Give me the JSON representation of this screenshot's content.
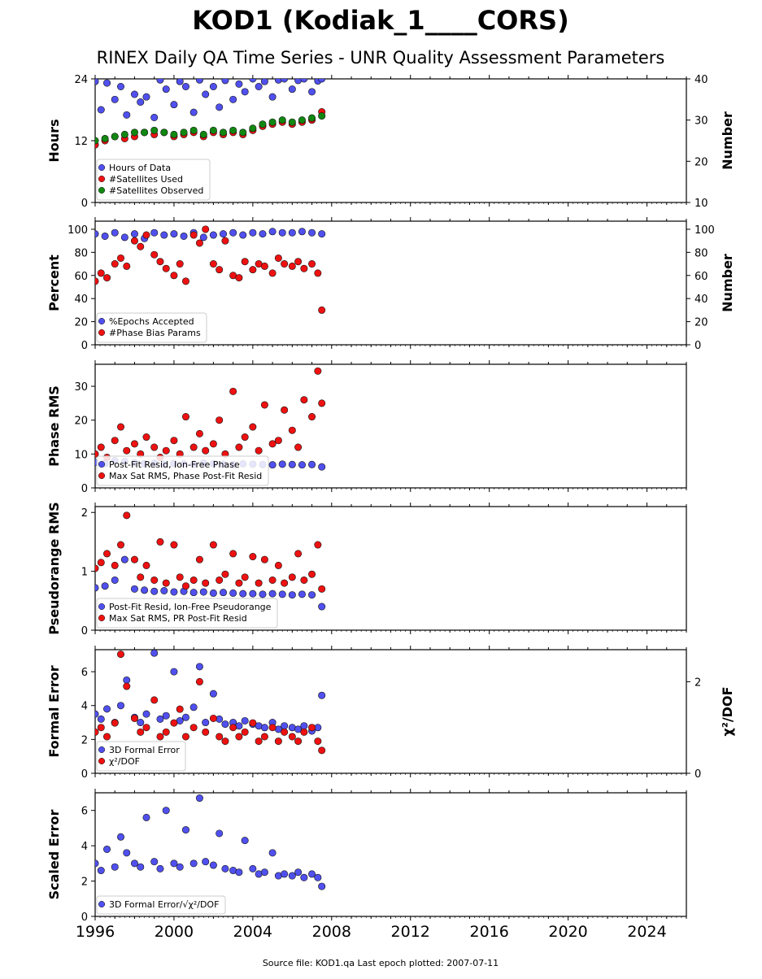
{
  "title": "KOD1 (Kodiak_1____CORS)",
  "subtitle": "RINEX Daily QA Time Series - UNR Quality Assessment Parameters",
  "footer": "Source file: KOD1.qa Last epoch plotted: 2007-07-11",
  "colors": {
    "blue": "#5050ee",
    "red": "#ee1111",
    "green": "#118811",
    "edge": "#111111"
  },
  "chart_data": [
    {
      "type": "scatter",
      "ylabel": "Hours",
      "ylabel_right": "Number",
      "xlim": [
        1996,
        2026
      ],
      "ylim": [
        0,
        24
      ],
      "ylim_right": [
        10,
        40
      ],
      "yticks": [
        0,
        12,
        24
      ],
      "yticks_right": [
        10,
        20,
        30,
        40
      ],
      "legend_loc": "lower-left",
      "series": [
        {
          "name": "Hours of Data",
          "color": "blue",
          "axis": "left",
          "x": [
            1996.0,
            1996.3,
            1996.6,
            1997.0,
            1997.3,
            1997.6,
            1998.0,
            1998.3,
            1998.6,
            1999.0,
            1999.3,
            1999.6,
            2000.0,
            2000.3,
            2000.6,
            2001.0,
            2001.3,
            2001.6,
            2002.0,
            2002.3,
            2002.6,
            2003.0,
            2003.3,
            2003.6,
            2004.0,
            2004.3,
            2004.6,
            2005.0,
            2005.3,
            2005.6,
            2006.0,
            2006.3,
            2006.6,
            2007.0,
            2007.3,
            2007.5
          ],
          "y": [
            23.5,
            18,
            23.2,
            20,
            22.5,
            17,
            21,
            19.5,
            20.5,
            16.5,
            23.8,
            22,
            19,
            23.5,
            22.5,
            17.5,
            23.8,
            21,
            22.5,
            18.5,
            23.7,
            20,
            23,
            21.5,
            24,
            22.5,
            23.5,
            20.5,
            23.8,
            24,
            22,
            23.7,
            24,
            21.5,
            23.6,
            24
          ]
        },
        {
          "name": "#Satellites Used",
          "color": "red",
          "axis": "right",
          "x": [
            1996.0,
            1996.5,
            1997.0,
            1997.5,
            1998.0,
            1998.5,
            1999.0,
            1999.5,
            2000.0,
            2000.5,
            2001.0,
            2001.5,
            2002.0,
            2002.5,
            2003.0,
            2003.5,
            2004.0,
            2004.5,
            2005.0,
            2005.5,
            2006.0,
            2006.5,
            2007.0,
            2007.5
          ],
          "y": [
            24,
            25,
            26,
            25.5,
            26,
            27,
            26.5,
            27,
            26,
            26.5,
            27,
            26,
            27,
            26.5,
            27,
            26.5,
            27.5,
            28.5,
            29,
            29.5,
            29,
            29.5,
            30,
            32
          ]
        },
        {
          "name": "#Satellites Observed",
          "color": "green",
          "axis": "right",
          "x": [
            1996.0,
            1996.5,
            1997.0,
            1997.5,
            1998.0,
            1998.5,
            1999.0,
            1999.5,
            2000.0,
            2000.5,
            2001.0,
            2001.5,
            2002.0,
            2002.5,
            2003.0,
            2003.5,
            2004.0,
            2004.5,
            2005.0,
            2005.5,
            2006.0,
            2006.5,
            2007.0,
            2007.5
          ],
          "y": [
            25,
            25.5,
            26,
            26.5,
            27,
            27,
            27.5,
            27,
            26.5,
            27,
            27.5,
            26.5,
            27.5,
            27,
            27.5,
            27,
            28,
            29,
            29.5,
            30,
            29.5,
            30,
            30.5,
            31
          ]
        }
      ]
    },
    {
      "type": "scatter",
      "ylabel": "Percent",
      "ylabel_right": "Number",
      "xlim": [
        1996,
        2026
      ],
      "ylim": [
        0,
        107
      ],
      "ylim_right": [
        0,
        107
      ],
      "yticks": [
        0,
        20,
        40,
        60,
        80,
        100
      ],
      "yticks_right": [
        0,
        20,
        40,
        60,
        80,
        100
      ],
      "legend_loc": "lower-left",
      "series": [
        {
          "name": "%Epochs Accepted",
          "color": "blue",
          "axis": "left",
          "x": [
            1996.0,
            1996.5,
            1997.0,
            1997.5,
            1998.0,
            1998.5,
            1999.0,
            1999.5,
            2000.0,
            2000.5,
            2001.0,
            2001.5,
            2002.0,
            2002.5,
            2003.0,
            2003.5,
            2004.0,
            2004.5,
            2005.0,
            2005.5,
            2006.0,
            2006.5,
            2007.0,
            2007.5
          ],
          "y": [
            96,
            94,
            97,
            93,
            96,
            92,
            97,
            95,
            96,
            94,
            97,
            93,
            95,
            96,
            97,
            95,
            97,
            96,
            98,
            97,
            97,
            98,
            97,
            96
          ]
        },
        {
          "name": "#Phase Bias Params",
          "color": "red",
          "axis": "right",
          "x": [
            1996.0,
            1996.3,
            1996.6,
            1997.0,
            1997.3,
            1997.6,
            1998.0,
            1998.3,
            1998.6,
            1999.0,
            1999.3,
            1999.6,
            2000.0,
            2000.3,
            2000.6,
            2001.0,
            2001.3,
            2001.6,
            2002.0,
            2002.3,
            2002.6,
            2003.0,
            2003.3,
            2003.6,
            2004.0,
            2004.3,
            2004.6,
            2005.0,
            2005.3,
            2005.6,
            2006.0,
            2006.3,
            2006.6,
            2007.0,
            2007.3,
            2007.5
          ],
          "y": [
            55,
            62,
            58,
            70,
            75,
            68,
            90,
            85,
            95,
            78,
            72,
            66,
            60,
            70,
            55,
            95,
            88,
            100,
            70,
            65,
            90,
            60,
            58,
            72,
            65,
            70,
            68,
            62,
            75,
            70,
            68,
            72,
            66,
            70,
            62,
            30
          ]
        }
      ]
    },
    {
      "type": "scatter",
      "ylabel": "Phase RMS",
      "xlim": [
        1996,
        2026
      ],
      "ylim": [
        0,
        36.5
      ],
      "yticks": [
        0,
        10,
        20,
        30
      ],
      "legend_loc": "lower-left",
      "series": [
        {
          "name": "Post-Fit Resid, Ion-Free Phase",
          "color": "blue",
          "x": [
            1996.0,
            1996.5,
            1997.0,
            1997.5,
            1998.0,
            1998.5,
            1999.0,
            1999.5,
            2000.0,
            2000.5,
            2001.0,
            2001.5,
            2002.0,
            2002.5,
            2003.0,
            2003.5,
            2004.0,
            2004.5,
            2005.0,
            2005.5,
            2006.0,
            2006.5,
            2007.0,
            2007.5
          ],
          "y": [
            7.5,
            7.2,
            8,
            7.8,
            7.4,
            7.1,
            7.3,
            7.0,
            7.2,
            7.1,
            7.0,
            7.3,
            7.1,
            7.0,
            6.9,
            7.1,
            7.0,
            6.9,
            6.8,
            7.0,
            6.9,
            6.8,
            6.9,
            6.2
          ]
        },
        {
          "name": "Max Sat RMS, Phase Post-Fit Resid",
          "color": "red",
          "x": [
            1996.0,
            1996.3,
            1996.6,
            1997.0,
            1997.3,
            1997.6,
            1998.0,
            1998.3,
            1998.6,
            1999.0,
            1999.3,
            1999.6,
            2000.0,
            2000.3,
            2000.6,
            2001.0,
            2001.3,
            2001.6,
            2002.0,
            2002.3,
            2002.6,
            2003.0,
            2003.3,
            2003.6,
            2004.0,
            2004.3,
            2004.6,
            2005.0,
            2005.3,
            2005.6,
            2006.0,
            2006.3,
            2006.6,
            2007.0,
            2007.3,
            2007.5
          ],
          "y": [
            10,
            12,
            9,
            14,
            18,
            11,
            13,
            10,
            15,
            12,
            9,
            11,
            14,
            10,
            21,
            12,
            16,
            11,
            13,
            20,
            10,
            28.5,
            12,
            15,
            18,
            11,
            24.5,
            13,
            14,
            23,
            17,
            12,
            26,
            21,
            34.5,
            25
          ]
        }
      ]
    },
    {
      "type": "scatter",
      "ylabel": "Pseudorange RMS",
      "xlim": [
        1996,
        2026
      ],
      "ylim": [
        0,
        2.1
      ],
      "yticks": [
        0,
        1,
        2
      ],
      "legend_loc": "lower-left",
      "series": [
        {
          "name": "Post-Fit Resid, Ion-Free Pseudorange",
          "color": "blue",
          "x": [
            1996.0,
            1996.5,
            1997.0,
            1997.5,
            1998.0,
            1998.5,
            1999.0,
            1999.5,
            2000.0,
            2000.5,
            2001.0,
            2001.5,
            2002.0,
            2002.5,
            2003.0,
            2003.5,
            2004.0,
            2004.5,
            2005.0,
            2005.5,
            2006.0,
            2006.5,
            2007.0,
            2007.5
          ],
          "y": [
            0.72,
            0.75,
            0.85,
            1.2,
            0.7,
            0.68,
            0.66,
            0.67,
            0.65,
            0.66,
            0.64,
            0.65,
            0.63,
            0.64,
            0.63,
            0.62,
            0.62,
            0.61,
            0.62,
            0.61,
            0.6,
            0.61,
            0.6,
            0.4
          ]
        },
        {
          "name": "Max Sat RMS, PR Post-Fit Resid",
          "color": "red",
          "x": [
            1996.0,
            1996.3,
            1996.6,
            1997.0,
            1997.3,
            1997.6,
            1998.0,
            1998.3,
            1998.6,
            1999.0,
            1999.3,
            1999.6,
            2000.0,
            2000.3,
            2000.6,
            2001.0,
            2001.3,
            2001.6,
            2002.0,
            2002.3,
            2002.6,
            2003.0,
            2003.3,
            2003.6,
            2004.0,
            2004.3,
            2004.6,
            2005.0,
            2005.3,
            2005.6,
            2006.0,
            2006.3,
            2006.6,
            2007.0,
            2007.3,
            2007.5
          ],
          "y": [
            1.05,
            1.15,
            1.3,
            1.1,
            1.45,
            1.95,
            1.2,
            0.9,
            1.1,
            0.85,
            1.5,
            0.8,
            1.45,
            0.9,
            0.75,
            0.85,
            1.2,
            0.8,
            1.45,
            0.85,
            0.95,
            1.3,
            0.8,
            0.9,
            1.25,
            0.8,
            1.2,
            0.85,
            1.1,
            0.8,
            0.9,
            1.3,
            0.85,
            0.95,
            1.45,
            0.7
          ]
        }
      ]
    },
    {
      "type": "scatter",
      "ylabel": "Formal Error",
      "ylabel_right": "χ²/DOF",
      "xlim": [
        1996,
        2026
      ],
      "ylim": [
        0,
        7.3
      ],
      "ylim_right": [
        0,
        2.7
      ],
      "yticks": [
        0,
        2,
        4,
        6
      ],
      "yticks_right": [
        0,
        2
      ],
      "legend_loc": "lower-left",
      "series": [
        {
          "name": "3D Formal Error",
          "color": "blue",
          "axis": "left",
          "x": [
            1996.0,
            1996.3,
            1996.6,
            1997.0,
            1997.3,
            1997.6,
            1998.0,
            1998.3,
            1998.6,
            1999.0,
            1999.3,
            1999.6,
            2000.0,
            2000.3,
            2000.6,
            2001.0,
            2001.3,
            2001.6,
            2002.0,
            2002.3,
            2002.6,
            2003.0,
            2003.3,
            2003.6,
            2004.0,
            2004.3,
            2004.6,
            2005.0,
            2005.3,
            2005.6,
            2006.0,
            2006.3,
            2006.6,
            2007.0,
            2007.3,
            2007.5
          ],
          "y": [
            3.5,
            3.2,
            3.8,
            3.0,
            4.0,
            5.5,
            3.3,
            3.0,
            3.5,
            7.1,
            3.2,
            3.4,
            6.0,
            3.1,
            3.3,
            3.9,
            6.3,
            3.0,
            4.7,
            3.2,
            2.9,
            3.0,
            2.8,
            3.1,
            2.9,
            2.8,
            2.7,
            3.0,
            2.6,
            2.8,
            2.7,
            2.6,
            2.8,
            2.5,
            2.7,
            4.6
          ]
        },
        {
          "name": "χ²/DOF",
          "color": "red",
          "axis": "right",
          "x": [
            1996.0,
            1996.3,
            1996.6,
            1997.0,
            1997.3,
            1997.6,
            1998.0,
            1998.3,
            1998.6,
            1999.0,
            1999.3,
            1999.6,
            2000.0,
            2000.3,
            2000.6,
            2001.0,
            2001.3,
            2001.6,
            2002.0,
            2002.3,
            2002.6,
            2003.0,
            2003.3,
            2003.6,
            2004.0,
            2004.3,
            2004.6,
            2005.0,
            2005.3,
            2005.6,
            2006.0,
            2006.3,
            2006.6,
            2007.0,
            2007.3,
            2007.5
          ],
          "y": [
            0.9,
            1.0,
            0.8,
            1.1,
            2.6,
            1.9,
            1.2,
            0.9,
            1.0,
            1.6,
            0.8,
            0.9,
            1.1,
            1.4,
            0.8,
            1.0,
            2.0,
            0.9,
            1.2,
            0.8,
            0.7,
            1.0,
            0.8,
            0.9,
            1.1,
            0.7,
            0.8,
            1.0,
            0.7,
            0.9,
            0.8,
            0.7,
            0.9,
            1.0,
            0.7,
            0.5
          ]
        }
      ]
    },
    {
      "type": "scatter",
      "ylabel": "Scaled Error",
      "xlim": [
        1996,
        2026
      ],
      "ylim": [
        0,
        7.0
      ],
      "yticks": [
        0,
        2,
        4,
        6
      ],
      "xticks": [
        1996,
        2000,
        2004,
        2008,
        2012,
        2016,
        2020,
        2024
      ],
      "legend_loc": "lower-left",
      "series": [
        {
          "name": "3D Formal Error/√χ²/DOF",
          "color": "blue",
          "x": [
            1996.0,
            1996.3,
            1996.6,
            1997.0,
            1997.3,
            1997.6,
            1998.0,
            1998.3,
            1998.6,
            1999.0,
            1999.3,
            1999.6,
            2000.0,
            2000.3,
            2000.6,
            2001.0,
            2001.3,
            2001.6,
            2002.0,
            2002.3,
            2002.6,
            2003.0,
            2003.3,
            2003.6,
            2004.0,
            2004.3,
            2004.6,
            2005.0,
            2005.3,
            2005.6,
            2006.0,
            2006.3,
            2006.6,
            2007.0,
            2007.3,
            2007.5
          ],
          "y": [
            3.0,
            2.6,
            3.8,
            2.8,
            4.5,
            3.6,
            3.0,
            2.8,
            5.6,
            3.1,
            2.7,
            6.0,
            3.0,
            2.8,
            4.9,
            3.0,
            6.7,
            3.1,
            2.9,
            4.7,
            2.7,
            2.6,
            2.5,
            4.3,
            2.7,
            2.4,
            2.5,
            3.6,
            2.3,
            2.4,
            2.3,
            2.5,
            2.2,
            2.4,
            2.2,
            1.7
          ]
        }
      ]
    }
  ]
}
